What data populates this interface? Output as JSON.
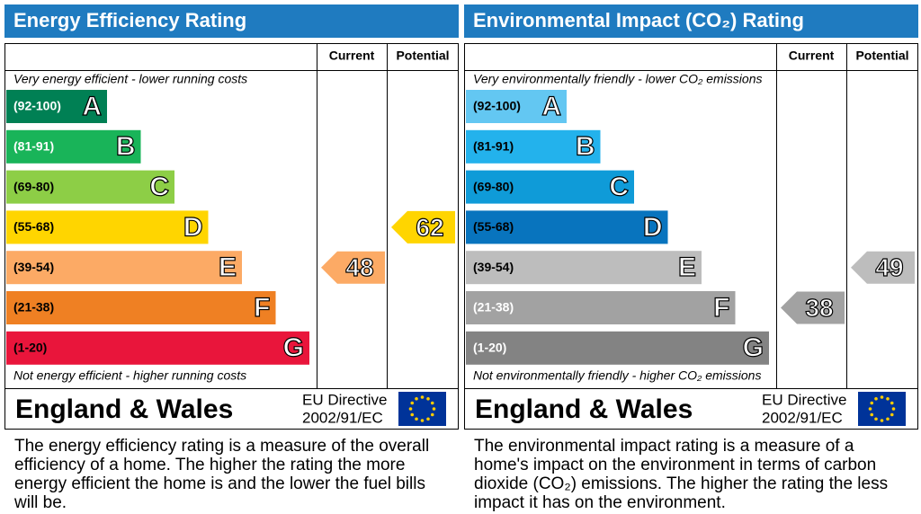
{
  "panels": [
    {
      "title": "Energy Efficiency Rating",
      "columns": [
        "Current",
        "Potential"
      ],
      "top_note": "Very energy efficient - lower running costs",
      "bottom_note": "Not energy efficient - higher running costs",
      "bands": [
        {
          "range": "(92-100)",
          "letter": "A",
          "color": "#008054",
          "text_color": "#ffffff"
        },
        {
          "range": "(81-91)",
          "letter": "B",
          "color": "#19b459",
          "text_color": "#ffffff"
        },
        {
          "range": "(69-80)",
          "letter": "C",
          "color": "#8dce46",
          "text_color": "#000000"
        },
        {
          "range": "(55-68)",
          "letter": "D",
          "color": "#ffd500",
          "text_color": "#000000"
        },
        {
          "range": "(39-54)",
          "letter": "E",
          "color": "#fcaa65",
          "text_color": "#000000"
        },
        {
          "range": "(21-38)",
          "letter": "F",
          "color": "#ef8023",
          "text_color": "#000000"
        },
        {
          "range": "(1-20)",
          "letter": "G",
          "color": "#e9153b",
          "text_color": "#000000"
        }
      ],
      "current": 48,
      "potential": 62,
      "region": "England & Wales",
      "directive": [
        "EU Directive",
        "2002/91/EC"
      ],
      "description": "The energy efficiency rating is a measure of the overall efficiency of a home. The higher the rating the more energy efficient the home is and the lower the fuel bills will be."
    },
    {
      "title": "Environmental Impact (CO₂) Rating",
      "columns": [
        "Current",
        "Potential"
      ],
      "top_note": "Very environmentally friendly - lower CO₂ emissions",
      "bottom_note": "Not environmentally friendly - higher CO₂ emissions",
      "bands": [
        {
          "range": "(92-100)",
          "letter": "A",
          "color": "#63c7f2",
          "text_color": "#000000"
        },
        {
          "range": "(81-91)",
          "letter": "B",
          "color": "#23b2ec",
          "text_color": "#000000"
        },
        {
          "range": "(69-80)",
          "letter": "C",
          "color": "#0f9bd8",
          "text_color": "#000000"
        },
        {
          "range": "(55-68)",
          "letter": "D",
          "color": "#0874be",
          "text_color": "#000000"
        },
        {
          "range": "(39-54)",
          "letter": "E",
          "color": "#bdbdbd",
          "text_color": "#000000"
        },
        {
          "range": "(21-38)",
          "letter": "F",
          "color": "#a2a2a2",
          "text_color": "#ffffff"
        },
        {
          "range": "(1-20)",
          "letter": "G",
          "color": "#838383",
          "text_color": "#ffffff"
        }
      ],
      "current": 38,
      "potential": 49,
      "region": "England & Wales",
      "directive": [
        "EU Directive",
        "2002/91/EC"
      ],
      "description": "The environmental impact rating is a measure of a home's impact on the environment in terms of carbon dioxide (CO₂) emissions. The higher the rating the less impact it has on the environment."
    }
  ]
}
